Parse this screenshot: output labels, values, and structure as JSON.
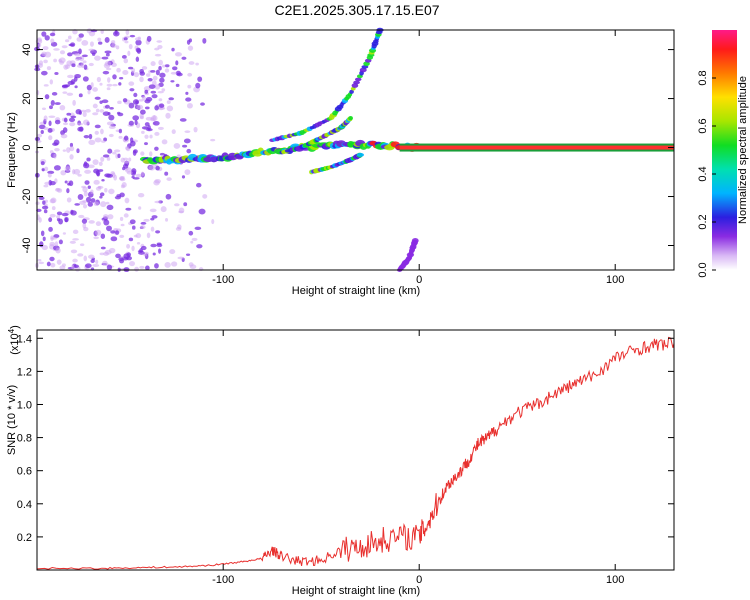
{
  "title": "C2E1.2025.305.17.15.E07",
  "chart_data": [
    {
      "type": "heatmap",
      "xlabel": "Height of straight line (km)",
      "ylabel": "Frequency (Hz)",
      "xlim": [
        -195,
        130
      ],
      "ylim": [
        -50,
        48
      ],
      "x_ticks": [
        -100,
        0,
        100
      ],
      "x_tick_labels": [
        "-100",
        "0",
        "100"
      ],
      "y_ticks": [
        -40,
        -20,
        0,
        20,
        40
      ],
      "y_tick_labels": [
        "-40",
        "-20",
        "0",
        "20",
        "40"
      ],
      "colorbar": {
        "label": "Normalized spectral amplitude",
        "range": [
          0,
          1
        ],
        "ticks": [
          0,
          0.2,
          0.4,
          0.6,
          0.8
        ],
        "tick_labels": [
          "0.0",
          "0.2",
          "0.4",
          "0.6",
          "0.8"
        ]
      },
      "features": [
        {
          "name": "zero-doppler main echo",
          "x": [
            -140,
            -120,
            -100,
            -80,
            -60,
            -40,
            -20,
            0,
            50,
            130
          ],
          "y": [
            -5,
            -5,
            -4,
            -2,
            0,
            1,
            1,
            0,
            0,
            0
          ]
        },
        {
          "name": "upper diverging branch",
          "x": [
            -75,
            -60,
            -45,
            -35,
            -25,
            -20
          ],
          "y": [
            3,
            6,
            12,
            22,
            37,
            48
          ]
        },
        {
          "name": "middle branch",
          "x": [
            -70,
            -60,
            -50,
            -40,
            -35
          ],
          "y": [
            -2,
            0,
            4,
            8,
            12
          ]
        },
        {
          "name": "lower branch",
          "x": [
            -55,
            -45,
            -35,
            -30
          ],
          "y": [
            -10,
            -8,
            -5,
            -3
          ]
        },
        {
          "name": "faint negative branch",
          "x": [
            -10,
            -5,
            -2
          ],
          "y": [
            -50,
            -45,
            -38
          ]
        },
        {
          "name": "low altitude noise band",
          "x_range": [
            -195,
            -105
          ],
          "y_range": [
            -50,
            48
          ]
        }
      ]
    },
    {
      "type": "line",
      "xlabel": "Height of straight line (km)",
      "ylabel": "SNR (10 * v/v)",
      "y_multiplier_label": "(x10",
      "y_multiplier_exp": "4",
      "xlim": [
        -195,
        130
      ],
      "ylim": [
        0,
        1.45
      ],
      "x_ticks": [
        -100,
        0,
        100
      ],
      "x_tick_labels": [
        "-100",
        "0",
        "100"
      ],
      "y_ticks": [
        0.2,
        0.4,
        0.6,
        0.8,
        1.0,
        1.2,
        1.4
      ],
      "y_tick_labels": [
        "0.2",
        "0.4",
        "0.6",
        "0.8",
        "1.0",
        "1.2",
        "1.4"
      ],
      "series": [
        {
          "name": "SNR",
          "color": "#e8302e",
          "x": [
            -195,
            -160,
            -140,
            -120,
            -105,
            -90,
            -80,
            -75,
            -70,
            -60,
            -50,
            -40,
            -30,
            -20,
            -10,
            0,
            5,
            10,
            15,
            20,
            25,
            30,
            35,
            40,
            50,
            60,
            70,
            80,
            90,
            100,
            110,
            120,
            130
          ],
          "y": [
            0.01,
            0.01,
            0.015,
            0.02,
            0.03,
            0.05,
            0.07,
            0.12,
            0.08,
            0.05,
            0.06,
            0.12,
            0.14,
            0.18,
            0.2,
            0.2,
            0.3,
            0.42,
            0.52,
            0.58,
            0.66,
            0.76,
            0.8,
            0.86,
            0.95,
            1.0,
            1.07,
            1.13,
            1.18,
            1.28,
            1.33,
            1.36,
            1.37
          ]
        }
      ]
    }
  ]
}
